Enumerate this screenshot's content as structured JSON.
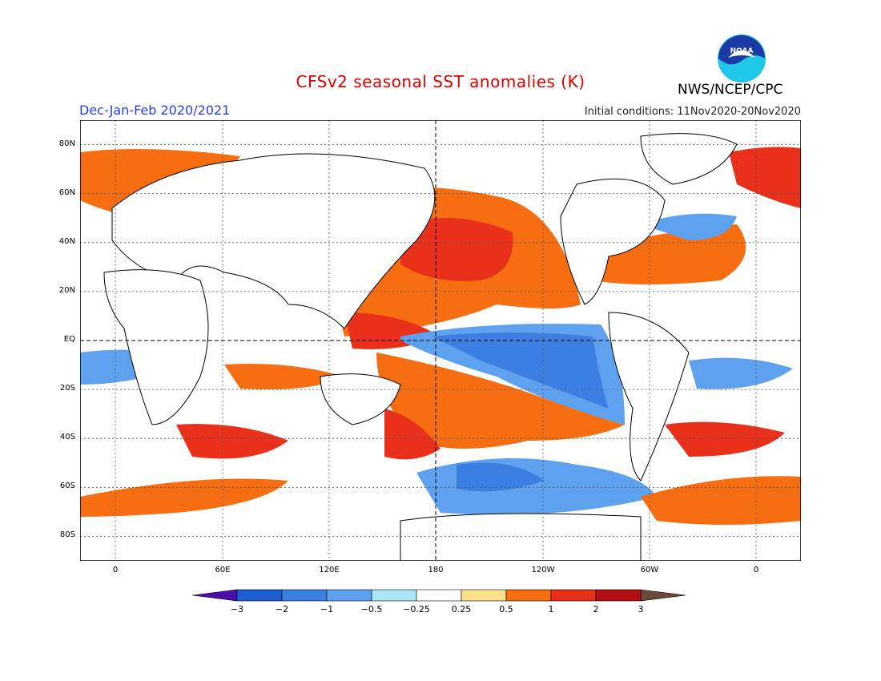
{
  "header": {
    "title": "CFSv2 seasonal SST anomalies (K)",
    "season": "Dec-Jan-Feb 2020/2021",
    "initial_conditions": "Initial conditions: 11Nov2020-20Nov2020",
    "agency": "NWS/NCEP/CPC",
    "logo_text": "NOAA"
  },
  "map": {
    "lat_labels": [
      "80N",
      "60N",
      "40N",
      "20N",
      "EQ",
      "20S",
      "40S",
      "60S",
      "80S"
    ],
    "lon_labels": [
      "0",
      "60E",
      "120E",
      "180",
      "120W",
      "60W",
      "0"
    ]
  },
  "colorbar": {
    "labels": [
      "-3",
      "-2",
      "-1",
      "-0.5",
      "-0.25",
      "0.25",
      "0.5",
      "1",
      "2",
      "3"
    ],
    "colors": [
      "#4a0fa8",
      "#1f5fd1",
      "#3b7fe3",
      "#5ea2ef",
      "#a9e6f6",
      "#ffffff",
      "#fbe08a",
      "#f66d12",
      "#e8301a",
      "#b30f12",
      "#6a4a3a"
    ]
  }
}
